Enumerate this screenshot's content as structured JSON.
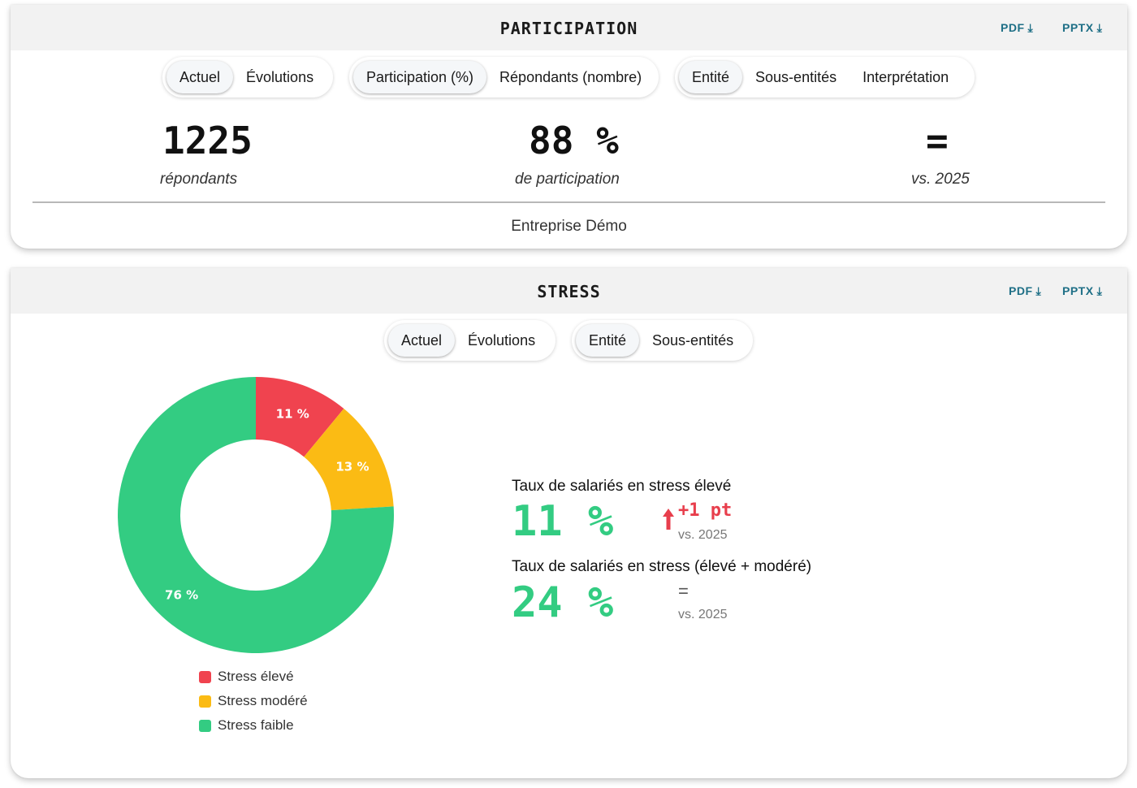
{
  "participation": {
    "title": "PARTICIPATION",
    "downloads": {
      "pdf": "PDF",
      "pptx": "PPTX",
      "icon": "download-icon"
    },
    "toggles": {
      "view": [
        {
          "label": "Actuel",
          "active": true
        },
        {
          "label": "Évolutions",
          "active": false
        }
      ],
      "metric": [
        {
          "label": "Participation (%)",
          "active": true
        },
        {
          "label": "Répondants (nombre)",
          "active": false
        }
      ],
      "scope": [
        {
          "label": "Entité",
          "active": true
        },
        {
          "label": "Sous-entités",
          "active": false
        },
        {
          "label": "Interprétation",
          "active": false
        }
      ]
    },
    "kpis": {
      "respondents": {
        "value": "1225",
        "label": "répondants"
      },
      "rate": {
        "value": "88 %",
        "label": "de participation"
      },
      "trend": {
        "value": "=",
        "label": "vs. 2025"
      }
    },
    "entity": "Entreprise Démo"
  },
  "stress": {
    "title": "STRESS",
    "downloads": {
      "pdf": "PDF",
      "pptx": "PPTX",
      "icon": "download-icon"
    },
    "toggles": {
      "view": [
        {
          "label": "Actuel",
          "active": true
        },
        {
          "label": "Évolutions",
          "active": false
        }
      ],
      "scope": [
        {
          "label": "Entité",
          "active": true
        },
        {
          "label": "Sous-entités",
          "active": false
        }
      ]
    },
    "stats": {
      "high": {
        "title": "Taux de salariés en stress élevé",
        "value": "11 %",
        "delta": "+1 pt",
        "delta_icon": "arrow-up-icon",
        "vs": "vs. 2025"
      },
      "high_moderate": {
        "title": "Taux de salariés en stress (élevé + modéré)",
        "value": "24 %",
        "delta": "=",
        "vs": "vs. 2025"
      }
    }
  },
  "colors": {
    "high": "#f0434f",
    "moderate": "#fbbb14",
    "low": "#33cc82",
    "accent": "#1e6f86"
  },
  "chart_data": {
    "type": "pie",
    "labels": [
      "Stress élevé",
      "Stress modéré",
      "Stress faible"
    ],
    "values": [
      11,
      13,
      76
    ],
    "data_labels": [
      "11 %",
      "13 %",
      "76 %"
    ],
    "colors": [
      "#f0434f",
      "#fbbb14",
      "#33cc82"
    ],
    "donut": true,
    "legend": "bottom"
  }
}
